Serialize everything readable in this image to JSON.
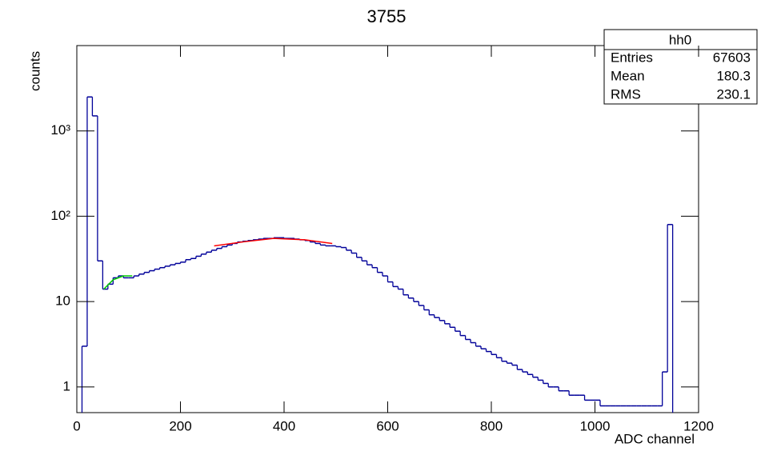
{
  "chart_data": {
    "type": "histogram",
    "title": "3755",
    "xlabel": "ADC channel",
    "ylabel": "counts",
    "log_y": true,
    "color": "#000099",
    "bins": [
      0,
      10,
      20,
      30,
      40,
      50,
      60,
      70,
      80,
      90,
      100,
      110,
      120,
      130,
      140,
      150,
      160,
      170,
      180,
      190,
      200,
      210,
      220,
      230,
      240,
      250,
      260,
      270,
      280,
      290,
      300,
      310,
      320,
      330,
      340,
      350,
      360,
      370,
      380,
      390,
      400,
      410,
      420,
      430,
      440,
      450,
      460,
      470,
      480,
      490,
      500,
      510,
      520,
      530,
      540,
      550,
      560,
      570,
      580,
      590,
      600,
      610,
      620,
      630,
      640,
      650,
      660,
      670,
      680,
      690,
      700,
      710,
      720,
      730,
      740,
      750,
      760,
      770,
      780,
      790,
      800,
      810,
      820,
      830,
      840,
      850,
      860,
      870,
      880,
      890,
      900,
      910,
      920,
      930,
      940,
      950,
      960,
      970,
      980,
      990,
      1000,
      1010,
      1020,
      1030,
      1040,
      1050,
      1060,
      1070,
      1080,
      1090,
      1100,
      1110,
      1120,
      1130,
      1140,
      1150,
      1160,
      1170,
      1180,
      1190,
      1200
    ],
    "counts": [
      0,
      3,
      2500,
      1500,
      30,
      14,
      16,
      19,
      20,
      19,
      19,
      20,
      21,
      22,
      23,
      24,
      25,
      26,
      27,
      28,
      29,
      31,
      32,
      34,
      36,
      38,
      40,
      42,
      44,
      46,
      48,
      50,
      51,
      52,
      53,
      54,
      55,
      55,
      56,
      56,
      55,
      55,
      54,
      53,
      52,
      50,
      48,
      46,
      45,
      45,
      44,
      43,
      40,
      37,
      33,
      30,
      27,
      25,
      22,
      20,
      17,
      15,
      14,
      12,
      11,
      10,
      9,
      8,
      7,
      6.5,
      6,
      5.5,
      5,
      4.5,
      4,
      3.6,
      3.3,
      3,
      2.8,
      2.6,
      2.4,
      2.2,
      2,
      1.9,
      1.8,
      1.6,
      1.5,
      1.4,
      1.3,
      1.2,
      1.1,
      1,
      1,
      0.9,
      0.9,
      0.8,
      0.8,
      0.8,
      0.7,
      0.7,
      0.7,
      0.6,
      0.6,
      0.6,
      0.6,
      0.6,
      0.6,
      0.6,
      0.6,
      0.6,
      0.6,
      0.6,
      0.6,
      1.5,
      80,
      0,
      0,
      0,
      0,
      0
    ],
    "fits": [
      {
        "color": "#00cc00",
        "x": [
          52,
          70,
          90,
          107
        ],
        "values": [
          14,
          18,
          20,
          20
        ]
      },
      {
        "color": "#ff0000",
        "x": [
          265,
          320,
          380,
          440,
          493
        ],
        "values": [
          45,
          50,
          55,
          53,
          48
        ]
      }
    ],
    "xlim": [
      0,
      1200
    ],
    "ylim": [
      0.5,
      10000
    ],
    "xticks": [
      0,
      200,
      400,
      600,
      800,
      1000,
      1200
    ],
    "yticks": [
      1,
      10,
      {
        "value": 100,
        "label": "10²"
      },
      {
        "value": 1000,
        "label": "10³"
      }
    ],
    "stats": {
      "title": "hh0",
      "rows": [
        [
          "Entries",
          "67603"
        ],
        [
          "Mean",
          "180.3"
        ],
        [
          "RMS",
          "230.1"
        ]
      ]
    }
  }
}
